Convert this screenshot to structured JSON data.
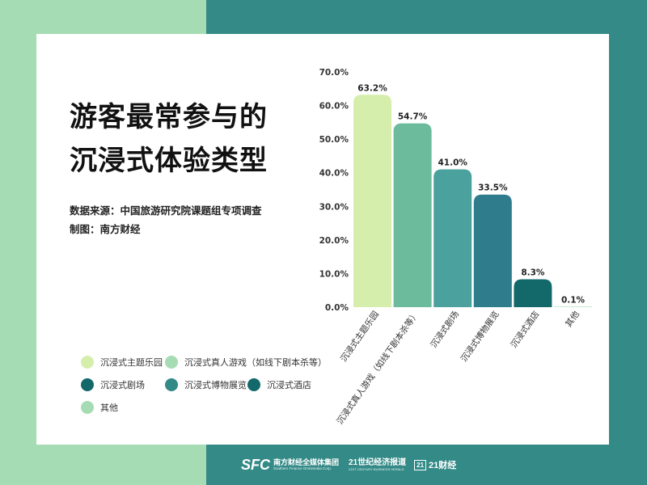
{
  "title_lines": [
    "游客最常参与的",
    "沉浸式体验类型"
  ],
  "source": "数据来源：中国旅游研究院课题组专项调查",
  "credit": "制图：南方财经",
  "colors": {
    "bg_left": "#a6dcb4",
    "bg_right": "#338a87",
    "card": "#ffffff"
  },
  "chart_data": {
    "type": "bar",
    "categories": [
      "沉浸式主题乐园",
      "沉浸式真人游戏（如线下剧本杀等）",
      "沉浸式剧场",
      "沉浸式博物展览",
      "沉浸式酒店",
      "其他"
    ],
    "values": [
      63.2,
      54.7,
      41.0,
      33.5,
      8.3,
      0.1
    ],
    "value_labels": [
      "63.2%",
      "54.7%",
      "41.0%",
      "33.5%",
      "8.3%",
      "0.1%"
    ],
    "bar_colors": [
      "#d5eeac",
      "#6cbb9c",
      "#4aa19e",
      "#2e7c8c",
      "#13686a",
      "#a6dcb4"
    ],
    "ylim": [
      0,
      70
    ],
    "y_ticks": [
      "0.0%",
      "10.0%",
      "20.0%",
      "30.0%",
      "40.0%",
      "50.0%",
      "60.0%",
      "70.0%"
    ],
    "grid": false,
    "legend_position": "bottom-left"
  },
  "legend": [
    {
      "label": "沉浸式主题乐园",
      "color": "#d5eeac"
    },
    {
      "label": "沉浸式真人游戏（如线下剧本杀等）",
      "color": "#a6dcb4"
    },
    {
      "label": "沉浸式剧场",
      "color": "#13686a"
    },
    {
      "label": "沉浸式博物展览",
      "color": "#338a87"
    },
    {
      "label": "沉浸式酒店",
      "color": "#13686a"
    },
    {
      "label": "其他",
      "color": "#a6dcb4"
    }
  ],
  "footer": {
    "logo1_mark": "SFC",
    "logo1_cn": "南方财经全媒体集团",
    "logo1_en": "Southern Finance Omnimedia Corp.",
    "logo2_cn": "21世纪经济报道",
    "logo2_en": "21ST CENTURY BUSINESS HERALD",
    "logo3_box": "21",
    "logo3_cn": "21财经"
  }
}
